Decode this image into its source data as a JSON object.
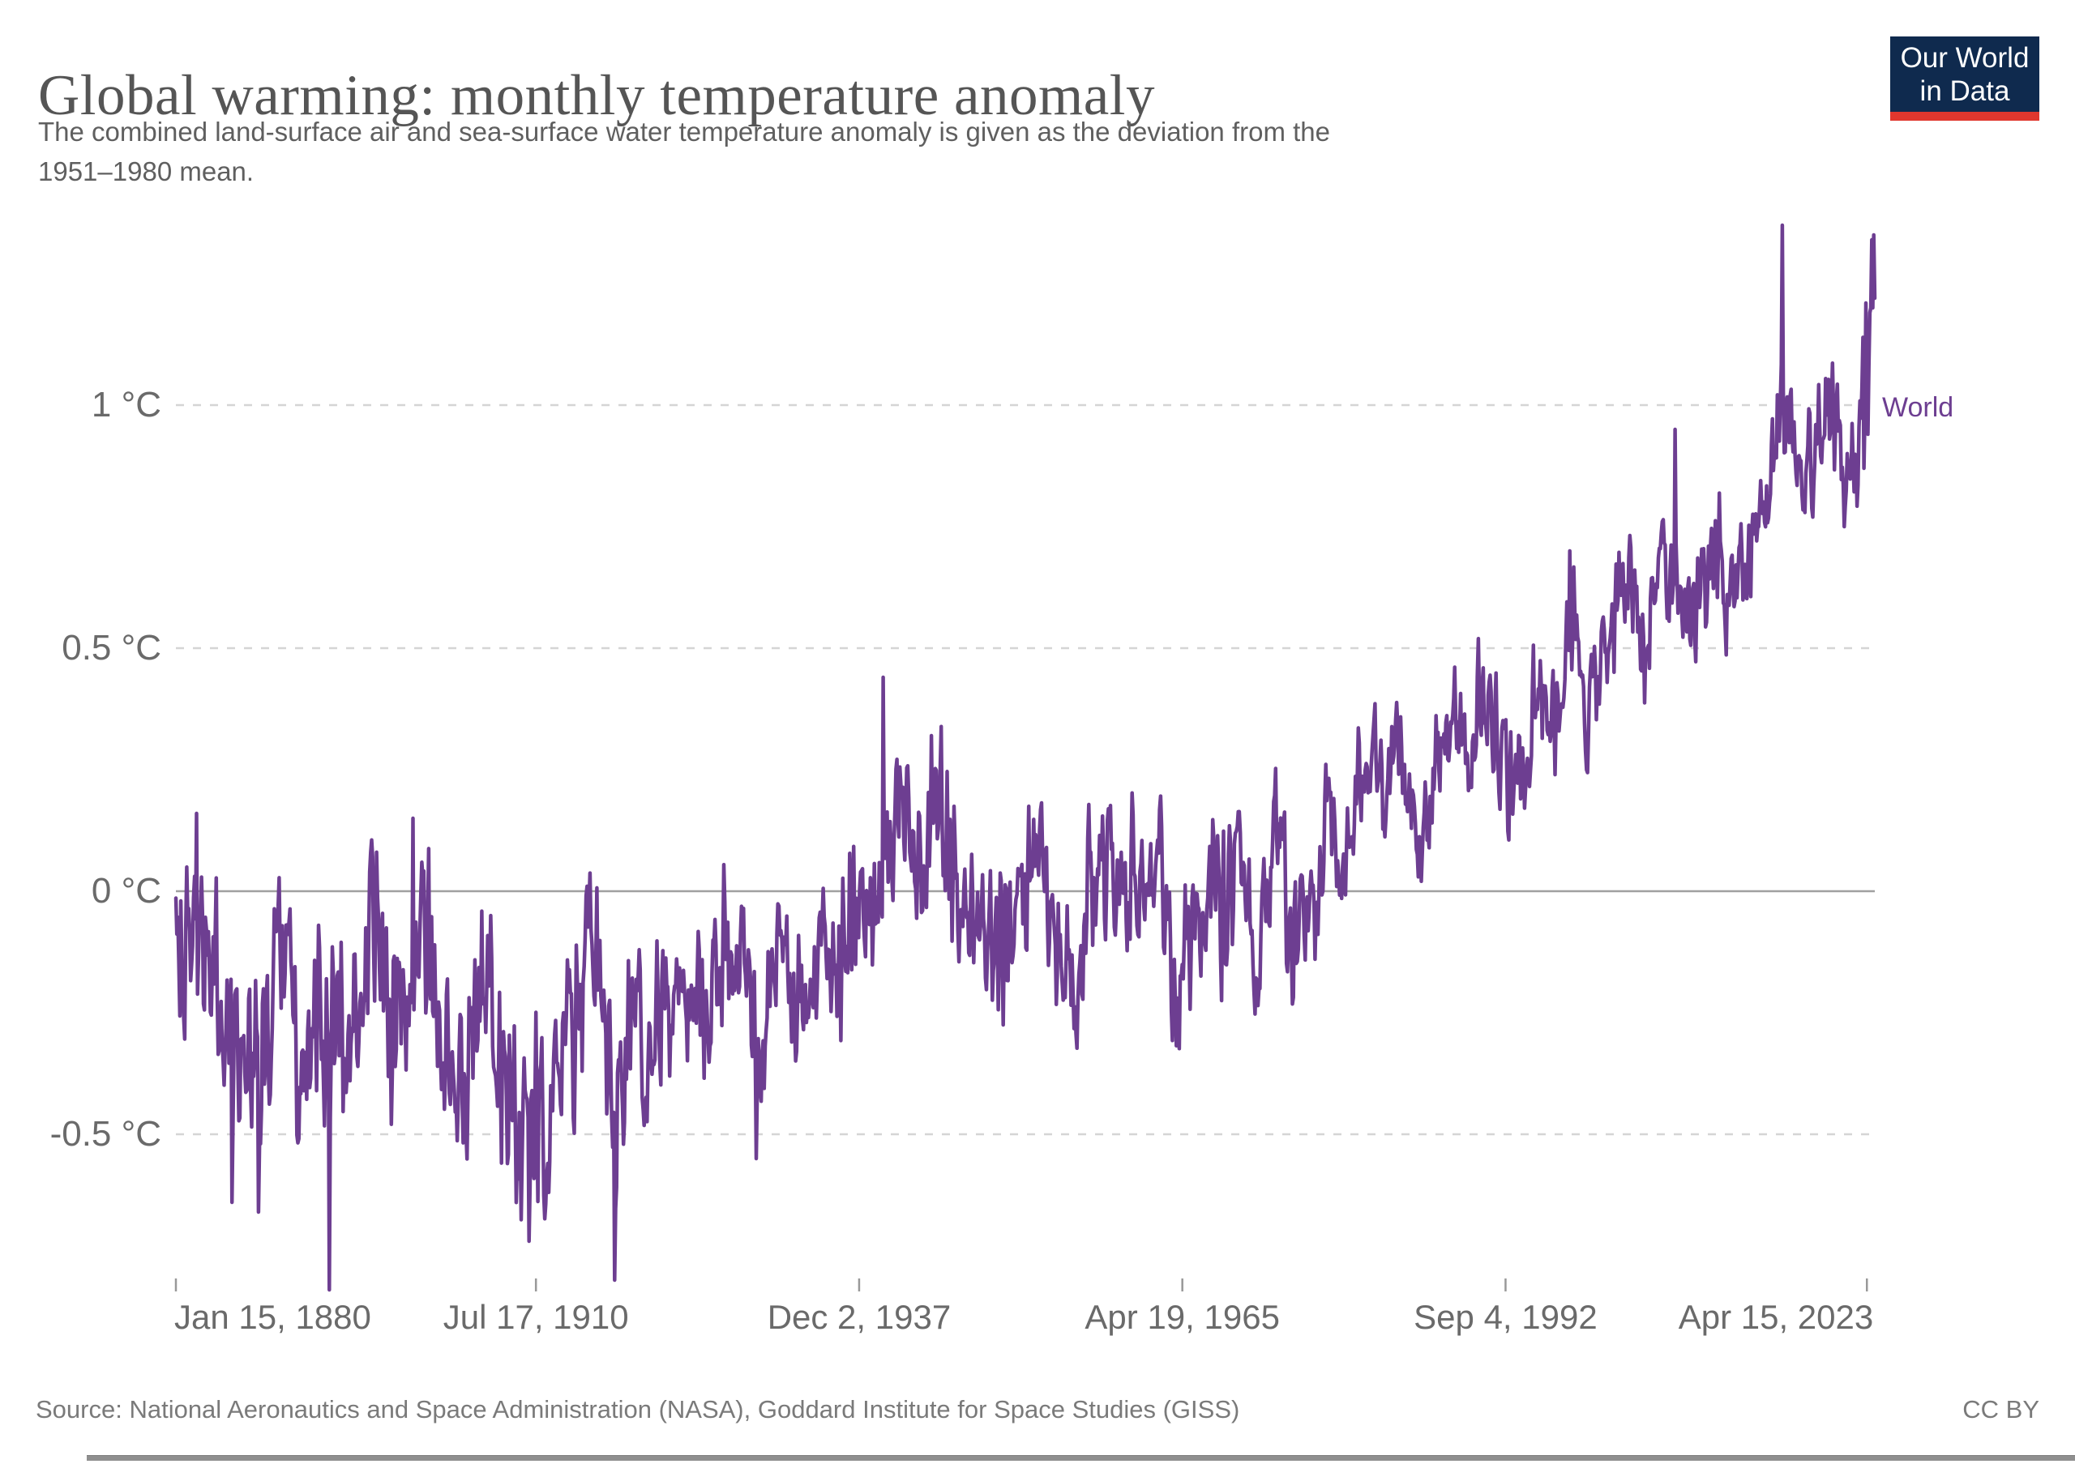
{
  "header": {
    "title": "Global warming: monthly temperature anomaly",
    "subtitle_lines": [
      "The combined land-surface air and sea-surface water temperature anomaly is given as the deviation from the",
      "1951–1980 mean."
    ]
  },
  "logo": {
    "line1": "Our World",
    "line2": "in Data",
    "bg": "#0f2a4e",
    "stripe": "#e0372e",
    "text": "#ffffff"
  },
  "series_label": "World",
  "colors": {
    "line": "#6d3e91",
    "grid": "#d5d5d5",
    "zero_line": "#a0a0a0",
    "tick": "#999999",
    "axis_text": "#6a6a6a",
    "title_text": "#555555",
    "subtitle_text": "#5f5f5f",
    "footer_text": "#7a7a7a"
  },
  "footer": {
    "source": "Source: National Aeronautics and Space Administration (NASA), Goddard Institute for Space Studies (GISS)",
    "license": "CC BY"
  },
  "chart_data": {
    "type": "line",
    "title": "Global warming: monthly temperature anomaly",
    "series_name": "World",
    "unit": "°C",
    "xlabel": "",
    "ylabel": "",
    "grid": true,
    "legend_position": "right-of-line-end",
    "x_start": 1880.04,
    "x_end": 2023.96,
    "ylim": [
      -0.88,
      1.45
    ],
    "y_ticks": [
      {
        "label": "1 °C",
        "value": 1
      },
      {
        "label": "0.5 °C",
        "value": 0.5
      },
      {
        "label": "0 °C",
        "value": 0
      },
      {
        "label": "-0.5 °C",
        "value": -0.5
      }
    ],
    "x_ticks": [
      {
        "label": "Jan 15, 1880",
        "value": 1880.04,
        "align": "start"
      },
      {
        "label": "Jul 17, 1910",
        "value": 1910.54,
        "align": "middle"
      },
      {
        "label": "Dec 2, 1937",
        "value": 1937.92,
        "align": "middle"
      },
      {
        "label": "Apr 19, 1965",
        "value": 1965.3,
        "align": "middle"
      },
      {
        "label": "Sep 4, 1992",
        "value": 1992.68,
        "align": "middle"
      },
      {
        "label": "Apr 15, 2023",
        "value": 2023.29,
        "align": "end"
      }
    ],
    "annual_start_year": 1880,
    "annual_mean": [
      -0.17,
      -0.09,
      -0.11,
      -0.17,
      -0.28,
      -0.33,
      -0.31,
      -0.36,
      -0.17,
      -0.1,
      -0.35,
      -0.22,
      -0.27,
      -0.31,
      -0.3,
      -0.23,
      -0.11,
      -0.11,
      -0.27,
      -0.17,
      -0.08,
      -0.15,
      -0.28,
      -0.37,
      -0.47,
      -0.26,
      -0.22,
      -0.39,
      -0.43,
      -0.48,
      -0.43,
      -0.44,
      -0.36,
      -0.34,
      -0.15,
      -0.14,
      -0.36,
      -0.46,
      -0.3,
      -0.27,
      -0.27,
      -0.19,
      -0.28,
      -0.26,
      -0.27,
      -0.22,
      -0.1,
      -0.21,
      -0.2,
      -0.36,
      -0.16,
      -0.09,
      -0.16,
      -0.29,
      -0.12,
      -0.2,
      -0.15,
      -0.03,
      0.0,
      -0.02,
      0.13,
      0.18,
      0.07,
      0.09,
      0.2,
      0.09,
      -0.07,
      -0.03,
      -0.11,
      -0.11,
      -0.17,
      -0.07,
      0.01,
      0.08,
      -0.13,
      -0.14,
      -0.19,
      0.05,
      0.06,
      0.03,
      -0.03,
      0.06,
      0.03,
      0.05,
      -0.2,
      -0.11,
      -0.06,
      -0.02,
      -0.08,
      0.05,
      0.03,
      -0.08,
      0.01,
      0.16,
      -0.07,
      -0.01,
      -0.1,
      0.18,
      0.07,
      0.16,
      0.26,
      0.32,
      0.14,
      0.31,
      0.16,
      0.12,
      0.18,
      0.32,
      0.39,
      0.27,
      0.45,
      0.41,
      0.22,
      0.23,
      0.31,
      0.45,
      0.33,
      0.46,
      0.61,
      0.38,
      0.39,
      0.53,
      0.63,
      0.62,
      0.53,
      0.68,
      0.64,
      0.66,
      0.54,
      0.66,
      0.72,
      0.61,
      0.65,
      0.68,
      0.74,
      0.9,
      1.01,
      0.92,
      0.85,
      0.98,
      1.01,
      0.85,
      0.89,
      1.17
    ],
    "monthly_recent_start": 2023.04,
    "monthly_recent": [
      0.87,
      0.98,
      1.21,
      1.0,
      0.94,
      1.08,
      1.19,
      1.2,
      1.34,
      1.2,
      1.35,
      1.22
    ],
    "notable_monthly_extremes": [
      [
        1881.79,
        0.16
      ],
      [
        1884.79,
        -0.64
      ],
      [
        1887.04,
        -0.66
      ],
      [
        1893.04,
        -0.82
      ],
      [
        1900.12,
        0.15
      ],
      [
        1909.96,
        -0.72
      ],
      [
        1917.21,
        -0.8
      ],
      [
        1929.21,
        -0.55
      ],
      [
        1939.96,
        0.44
      ],
      [
        1944.04,
        0.32
      ],
      [
        1998.12,
        0.7
      ],
      [
        2007.04,
        0.95
      ],
      [
        2016.12,
        1.37
      ]
    ]
  }
}
